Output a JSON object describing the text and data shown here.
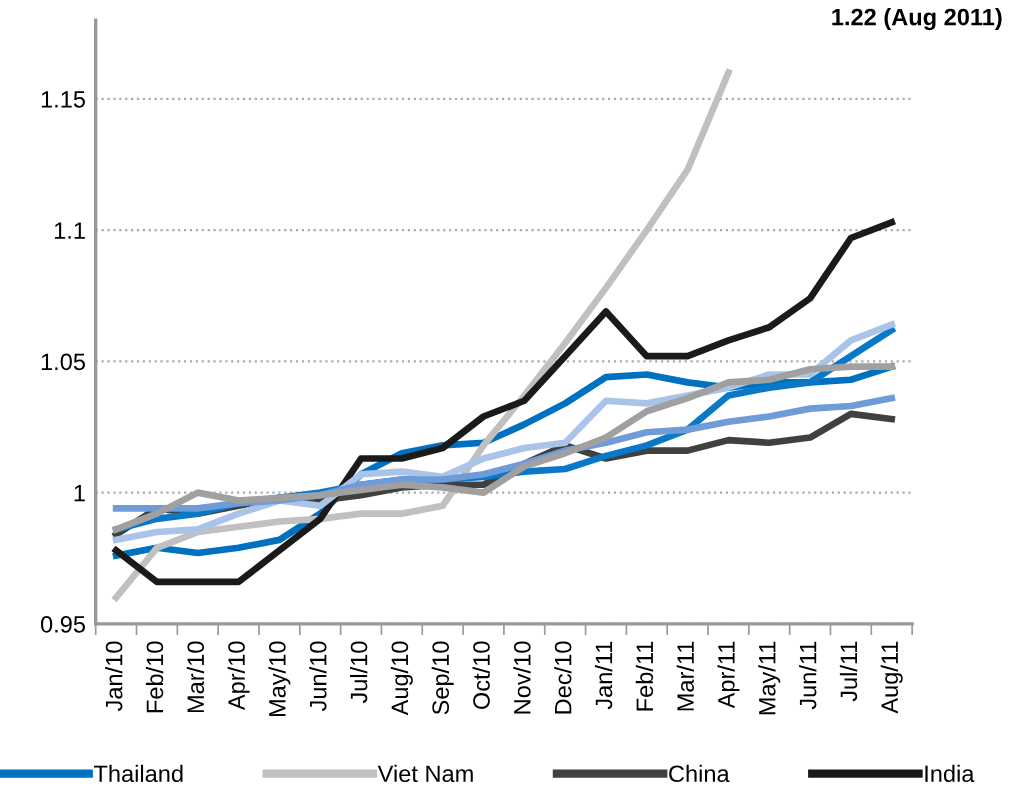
{
  "chart_data": {
    "type": "line",
    "categories": [
      "Jan/10",
      "Feb/10",
      "Mar/10",
      "Apr/10",
      "May/10",
      "Jun/10",
      "Jul/10",
      "Aug/10",
      "Sep/10",
      "Oct/10",
      "Nov/10",
      "Dec/10",
      "Jan/11",
      "Feb/11",
      "Mar/11",
      "Apr/11",
      "May/11",
      "Jun/11",
      "Jul/11",
      "Aug/11"
    ],
    "series": [
      {
        "name": "Thailand",
        "color": "#0070c0",
        "values": [
          0.976,
          0.979,
          0.977,
          0.979,
          0.982,
          0.992,
          1.007,
          1.015,
          1.018,
          1.019,
          1.026,
          1.034,
          1.044,
          1.045,
          1.042,
          1.04,
          1.042,
          1.042,
          1.043,
          1.048
        ]
      },
      {
        "name": "Viet Nam",
        "color": "#c0c0c0",
        "values": [
          0.96,
          0.979,
          0.985,
          0.987,
          0.989,
          0.99,
          0.992,
          0.992,
          0.995,
          1.018,
          1.037,
          1.057,
          1.078,
          1.1,
          1.123,
          1.16,
          null,
          null,
          null,
          null
        ]
      },
      {
        "name": "China",
        "color": "#404040",
        "values": [
          0.984,
          0.994,
          0.992,
          0.995,
          0.998,
          0.997,
          0.999,
          1.002,
          1.003,
          1.003,
          1.011,
          1.018,
          1.013,
          1.016,
          1.016,
          1.02,
          1.019,
          1.021,
          1.03,
          1.028
        ]
      },
      {
        "name": "India",
        "color": "#1a1a1a",
        "values": [
          0.978,
          0.966,
          0.966,
          0.966,
          0.978,
          0.99,
          1.013,
          1.013,
          1.017,
          1.029,
          1.035,
          1.052,
          1.069,
          1.052,
          1.052,
          1.058,
          1.063,
          1.074,
          1.097,
          1.103
        ]
      },
      {
        "color": "#0a78c8",
        "values": [
          0.986,
          0.99,
          0.992,
          0.996,
          0.998,
          1.0,
          1.003,
          1.005,
          1.005,
          1.006,
          1.008,
          1.009,
          1.014,
          1.018,
          1.024,
          1.037,
          1.04,
          1.042,
          1.052,
          1.062
        ]
      },
      {
        "color": "#a9c4e8",
        "values": [
          0.982,
          0.985,
          0.986,
          0.992,
          0.997,
          0.995,
          1.007,
          1.008,
          1.006,
          1.013,
          1.017,
          1.019,
          1.035,
          1.034,
          1.037,
          1.04,
          1.045,
          1.045,
          1.058,
          1.064
        ]
      },
      {
        "color": "#6f9bd8",
        "values": [
          0.994,
          0.994,
          0.994,
          0.996,
          0.997,
          0.999,
          1.003,
          1.005,
          1.005,
          1.007,
          1.011,
          1.016,
          1.019,
          1.023,
          1.024,
          1.027,
          1.029,
          1.032,
          1.033,
          1.036
        ]
      },
      {
        "color": "#a0a0a0",
        "values": [
          0.986,
          0.992,
          1.0,
          0.997,
          0.998,
          0.999,
          1.001,
          1.003,
          1.002,
          1.0,
          1.01,
          1.015,
          1.021,
          1.031,
          1.036,
          1.042,
          1.043,
          1.047,
          1.048,
          1.048
        ]
      }
    ],
    "ylim": [
      0.95,
      1.18
    ],
    "yticks": [
      0.95,
      1,
      1.05,
      1.1,
      1.15
    ],
    "grid": "y",
    "legend": "bottom",
    "annotations": [
      "1.22 (Aug 2011)"
    ]
  }
}
